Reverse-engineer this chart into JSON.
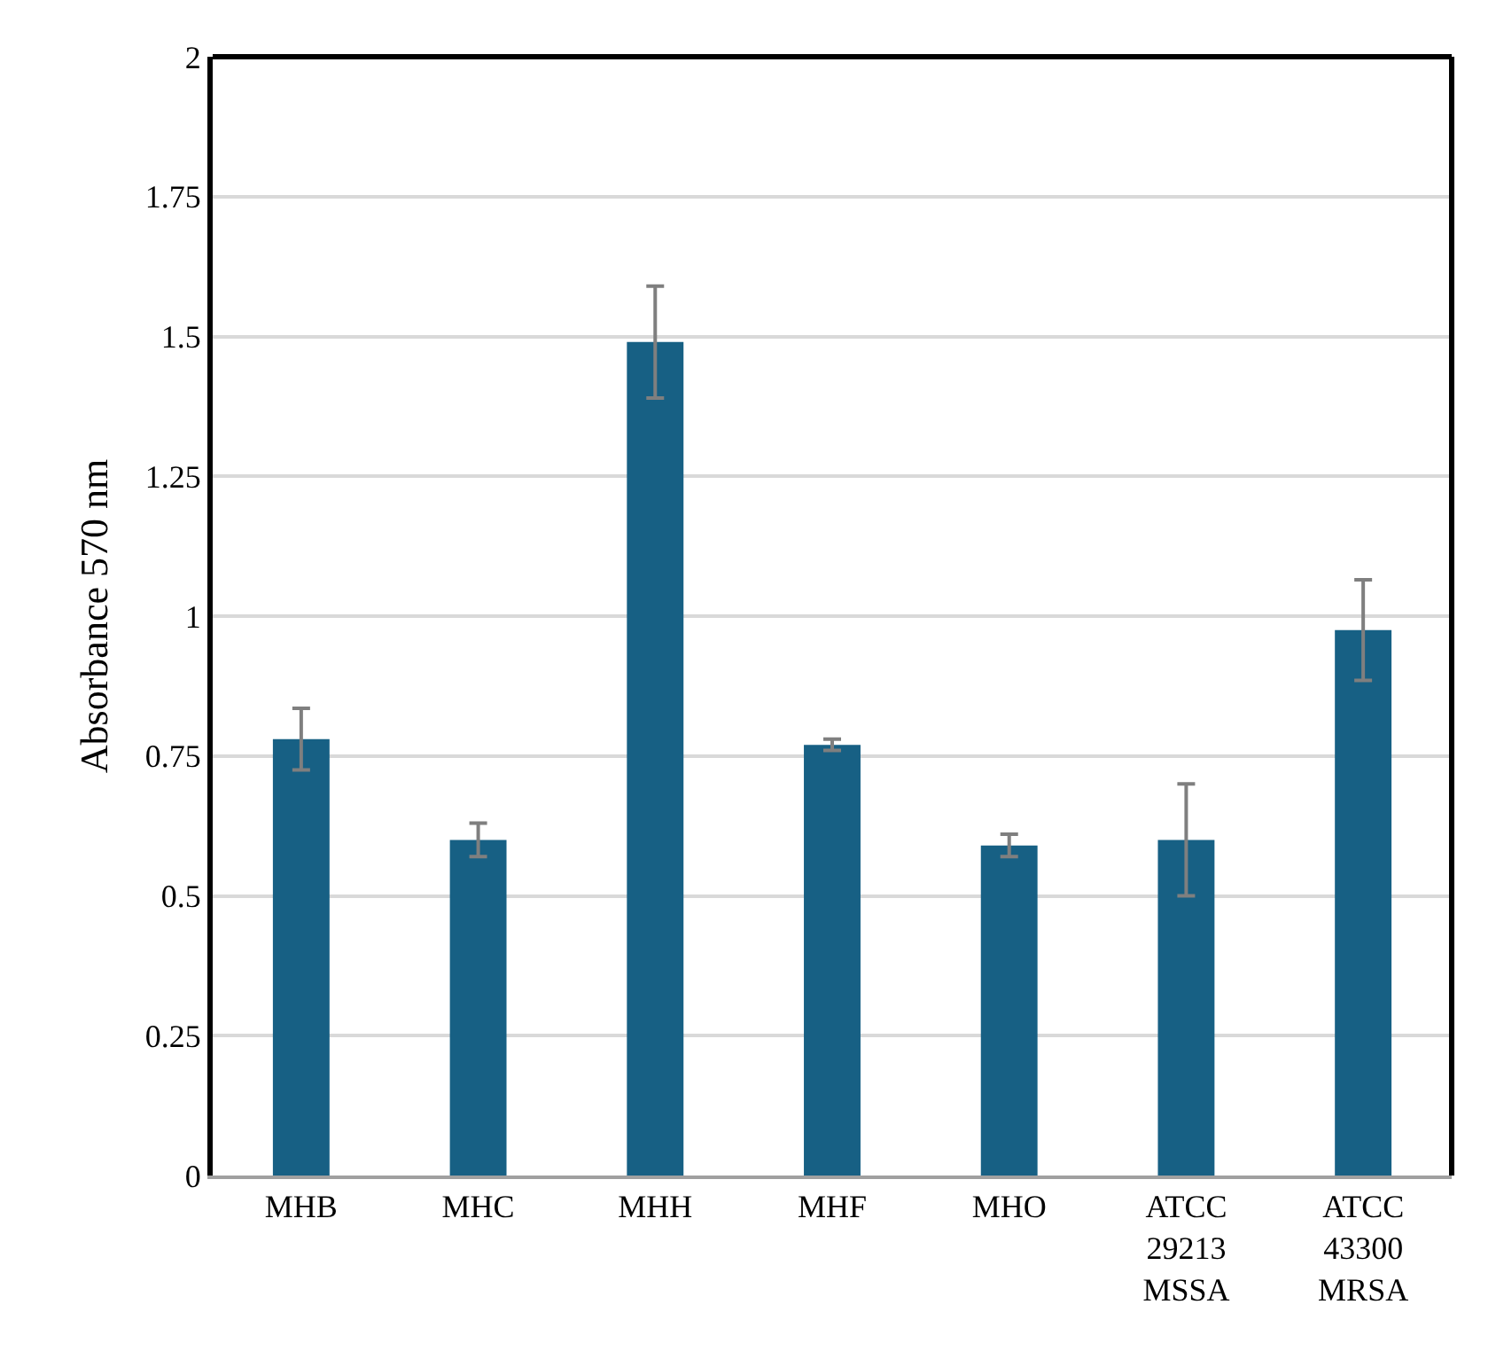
{
  "chart_data": {
    "type": "bar",
    "ylabel": "Absorbance 570 nm",
    "categories": [
      "MHB",
      "MHC",
      "MHH",
      "MHF",
      "MHO",
      "ATCC\n29213\nMSSA",
      "ATCC\n43300\nMRSA"
    ],
    "values": [
      0.78,
      0.6,
      1.49,
      0.77,
      0.59,
      0.6,
      0.975
    ],
    "errors": [
      0.055,
      0.03,
      0.1,
      0.01,
      0.02,
      0.1,
      0.09
    ],
    "color": "#176084",
    "ylim": [
      0,
      2
    ],
    "yticks": [
      0,
      0.25,
      0.5,
      0.75,
      1,
      1.25,
      1.5,
      1.75,
      2
    ],
    "grid": "y"
  }
}
